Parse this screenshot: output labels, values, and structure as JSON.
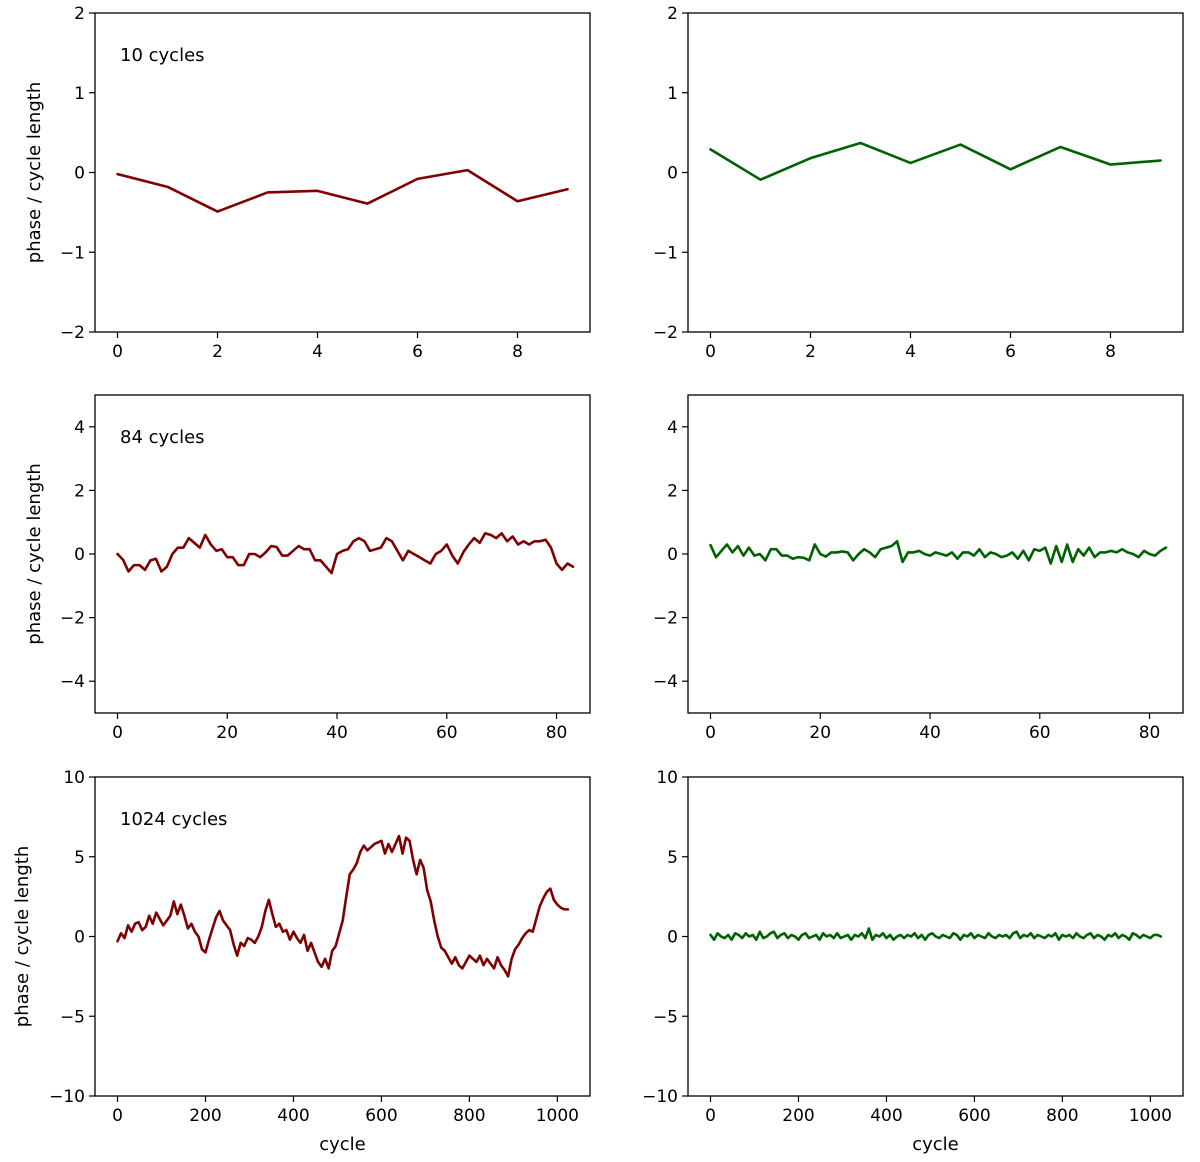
{
  "colors": {
    "left_series": "#7f0000",
    "right_series": "#006100",
    "axis": "#000000"
  },
  "chart_data": [
    {
      "type": "line",
      "row": 1,
      "col": 1,
      "annotation": "10 cycles",
      "xlabel": "",
      "ylabel": "phase / cycle length",
      "xlim": [
        -0.45,
        9.45
      ],
      "ylim": [
        -2,
        2
      ],
      "xticks": [
        0,
        2,
        4,
        6,
        8
      ],
      "yticks": [
        -2,
        -1,
        0,
        1,
        2
      ],
      "x_start": 0,
      "x_step": 1,
      "series": [
        {
          "name": "left",
          "color": "#7f0000",
          "values": [
            -0.02,
            -0.18,
            -0.49,
            -0.25,
            -0.23,
            -0.39,
            -0.08,
            0.03,
            -0.36,
            -0.21
          ]
        }
      ]
    },
    {
      "type": "line",
      "row": 1,
      "col": 2,
      "annotation": "",
      "xlabel": "",
      "ylabel": "",
      "xlim": [
        -0.45,
        9.45
      ],
      "ylim": [
        -2,
        2
      ],
      "xticks": [
        0,
        2,
        4,
        6,
        8
      ],
      "yticks": [
        -2,
        -1,
        0,
        1,
        2
      ],
      "x_start": 0,
      "x_step": 1,
      "series": [
        {
          "name": "right",
          "color": "#006100",
          "values": [
            0.29,
            -0.09,
            0.18,
            0.37,
            0.12,
            0.35,
            0.04,
            0.32,
            0.1,
            0.15
          ]
        }
      ]
    },
    {
      "type": "line",
      "row": 2,
      "col": 1,
      "annotation": "84 cycles",
      "xlabel": "",
      "ylabel": "phase / cycle length",
      "xlim": [
        -4.1,
        86.1
      ],
      "ylim": [
        -5,
        5
      ],
      "xticks": [
        0,
        20,
        40,
        60,
        80
      ],
      "yticks": [
        -4,
        -2,
        0,
        2,
        4
      ],
      "x_start": 0,
      "x_step": 1,
      "series": [
        {
          "name": "left",
          "color": "#7f0000",
          "values": [
            0.0,
            -0.18,
            -0.55,
            -0.35,
            -0.35,
            -0.5,
            -0.2,
            -0.15,
            -0.55,
            -0.4,
            0.0,
            0.2,
            0.2,
            0.5,
            0.35,
            0.2,
            0.6,
            0.3,
            0.1,
            0.15,
            -0.1,
            -0.1,
            -0.35,
            -0.35,
            0.0,
            0.0,
            -0.1,
            0.05,
            0.25,
            0.22,
            -0.05,
            -0.05,
            0.1,
            0.25,
            0.15,
            0.15,
            -0.2,
            -0.2,
            -0.4,
            -0.6,
            0.0,
            0.1,
            0.15,
            0.4,
            0.5,
            0.4,
            0.1,
            0.15,
            0.2,
            0.5,
            0.4,
            0.1,
            -0.2,
            0.1,
            0.0,
            -0.1,
            -0.2,
            -0.3,
            0.0,
            0.1,
            0.3,
            -0.05,
            -0.3,
            0.05,
            0.3,
            0.5,
            0.35,
            0.65,
            0.6,
            0.5,
            0.65,
            0.4,
            0.55,
            0.3,
            0.4,
            0.3,
            0.4,
            0.4,
            0.45,
            0.2,
            -0.3,
            -0.5,
            -0.3,
            -0.4
          ]
        }
      ]
    },
    {
      "type": "line",
      "row": 2,
      "col": 2,
      "annotation": "",
      "xlabel": "",
      "ylabel": "",
      "xlim": [
        -4.1,
        86.1
      ],
      "ylim": [
        -5,
        5
      ],
      "xticks": [
        0,
        20,
        40,
        60,
        80
      ],
      "yticks": [
        -4,
        -2,
        0,
        2,
        4
      ],
      "x_start": 0,
      "x_step": 1,
      "series": [
        {
          "name": "right",
          "color": "#006100",
          "values": [
            0.28,
            -0.1,
            0.1,
            0.3,
            0.05,
            0.25,
            -0.05,
            0.2,
            -0.05,
            0.0,
            -0.2,
            0.15,
            0.15,
            -0.05,
            -0.05,
            -0.15,
            -0.1,
            -0.12,
            -0.2,
            0.3,
            0.0,
            -0.08,
            0.05,
            0.05,
            0.08,
            0.05,
            -0.2,
            0.0,
            0.15,
            0.05,
            -0.1,
            0.15,
            0.2,
            0.25,
            0.4,
            -0.25,
            0.05,
            0.05,
            0.1,
            0.0,
            -0.05,
            0.05,
            0.0,
            -0.05,
            0.05,
            -0.15,
            0.05,
            0.05,
            -0.05,
            0.15,
            -0.1,
            0.05,
            0.0,
            -0.1,
            -0.05,
            0.05,
            -0.15,
            0.1,
            -0.2,
            0.15,
            0.1,
            0.2,
            -0.3,
            0.25,
            -0.25,
            0.3,
            -0.25,
            0.15,
            -0.05,
            0.2,
            -0.1,
            0.05,
            0.05,
            0.1,
            0.05,
            0.15,
            0.05,
            0.0,
            -0.1,
            0.1,
            0.0,
            -0.05,
            0.1,
            0.2
          ]
        }
      ]
    },
    {
      "type": "line",
      "row": 3,
      "col": 1,
      "annotation": "1024 cycles",
      "xlabel": "cycle",
      "ylabel": "phase / cycle length",
      "xlim": [
        -51.2,
        1074.2
      ],
      "ylim": [
        -10,
        10
      ],
      "xticks": [
        0,
        200,
        400,
        600,
        800,
        1000
      ],
      "yticks": [
        -10,
        -5,
        0,
        5,
        10
      ],
      "x_start": 0,
      "x_step": 8,
      "series": [
        {
          "name": "left",
          "color": "#7f0000",
          "values": [
            -0.3,
            0.2,
            -0.1,
            0.7,
            0.3,
            0.8,
            0.9,
            0.4,
            0.6,
            1.3,
            0.8,
            1.5,
            1.1,
            0.7,
            1.0,
            1.3,
            2.2,
            1.4,
            2.0,
            1.3,
            0.5,
            0.8,
            0.3,
            0.0,
            -0.8,
            -1.0,
            -0.2,
            0.5,
            1.2,
            1.6,
            1.0,
            0.7,
            0.4,
            -0.5,
            -1.2,
            -0.4,
            -0.6,
            -0.1,
            -0.2,
            -0.4,
            0.0,
            0.6,
            1.6,
            2.3,
            1.4,
            0.6,
            0.8,
            0.3,
            0.4,
            -0.2,
            0.3,
            -0.1,
            -0.4,
            0.1,
            -0.9,
            -0.4,
            -1.0,
            -1.6,
            -1.9,
            -1.4,
            -2.0,
            -0.9,
            -0.6,
            0.2,
            1.0,
            2.5,
            3.9,
            4.2,
            4.6,
            5.3,
            5.7,
            5.4,
            5.6,
            5.8,
            5.9,
            6.0,
            5.2,
            5.8,
            5.3,
            5.8,
            6.3,
            5.2,
            6.2,
            6.0,
            4.8,
            3.9,
            4.8,
            4.3,
            2.9,
            2.2,
            1.0,
            0.0,
            -0.7,
            -0.9,
            -1.3,
            -1.7,
            -1.3,
            -1.8,
            -2.0,
            -1.6,
            -1.2,
            -1.4,
            -1.6,
            -1.2,
            -1.8,
            -1.4,
            -1.7,
            -2.0,
            -1.3,
            -1.8,
            -2.1,
            -2.5,
            -1.4,
            -0.8,
            -0.5,
            -0.1,
            0.2,
            0.4,
            0.3,
            1.1,
            1.9,
            2.4,
            2.8,
            3.0,
            2.3,
            2.0,
            1.8,
            1.7,
            1.7
          ]
        }
      ]
    },
    {
      "type": "line",
      "row": 3,
      "col": 2,
      "annotation": "",
      "xlabel": "cycle",
      "ylabel": "",
      "xlim": [
        -51.2,
        1074.2
      ],
      "ylim": [
        -10,
        10
      ],
      "xticks": [
        0,
        200,
        400,
        600,
        800,
        1000
      ],
      "yticks": [
        -10,
        -5,
        0,
        5,
        10
      ],
      "x_start": 0,
      "x_step": 8,
      "series": [
        {
          "name": "right",
          "color": "#006100",
          "values": [
            0.1,
            -0.2,
            0.2,
            0.0,
            -0.1,
            0.1,
            -0.2,
            0.2,
            0.1,
            -0.1,
            0.2,
            0.0,
            0.1,
            -0.2,
            0.3,
            -0.1,
            0.0,
            0.2,
            0.3,
            -0.1,
            0.1,
            0.2,
            -0.1,
            0.1,
            0.0,
            -0.2,
            0.1,
            0.2,
            -0.1,
            0.0,
            0.1,
            -0.2,
            0.2,
            0.0,
            0.1,
            -0.1,
            0.2,
            -0.1,
            0.0,
            0.1,
            -0.2,
            0.1,
            0.0,
            0.2,
            -0.1,
            0.5,
            -0.2,
            0.1,
            0.0,
            0.2,
            -0.1,
            0.1,
            -0.2,
            0.0,
            0.1,
            -0.1,
            0.1,
            0.0,
            0.2,
            -0.1,
            0.1,
            -0.2,
            0.1,
            0.2,
            0.0,
            -0.1,
            0.1,
            0.0,
            -0.1,
            0.2,
            0.1,
            -0.2,
            0.1,
            0.0,
            0.2,
            -0.1,
            0.1,
            0.0,
            -0.1,
            0.2,
            0.0,
            -0.1,
            0.1,
            0.0,
            0.1,
            -0.1,
            0.2,
            0.3,
            -0.1,
            0.1,
            0.0,
            0.2,
            -0.1,
            0.1,
            0.0,
            -0.1,
            0.1,
            0.0,
            0.2,
            -0.2,
            0.1,
            0.0,
            0.1,
            -0.1,
            0.2,
            0.0,
            -0.1,
            0.1,
            0.2,
            -0.1,
            0.1,
            0.0,
            -0.2,
            0.1,
            0.0,
            0.2,
            -0.1,
            0.1,
            0.0,
            -0.2,
            0.2,
            0.1,
            -0.1,
            0.1,
            0.0,
            -0.1,
            0.1,
            0.1,
            0.0
          ]
        }
      ]
    }
  ]
}
